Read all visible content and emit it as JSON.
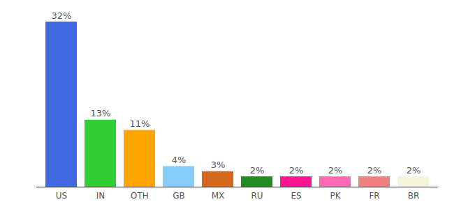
{
  "chart_data": {
    "type": "bar",
    "categories": [
      "US",
      "IN",
      "OTH",
      "GB",
      "MX",
      "RU",
      "ES",
      "PK",
      "FR",
      "BR"
    ],
    "values": [
      32,
      13,
      11,
      4,
      3,
      2,
      2,
      2,
      2,
      2
    ],
    "value_labels": [
      "32%",
      "13%",
      "11%",
      "4%",
      "3%",
      "2%",
      "2%",
      "2%",
      "2%",
      "2%"
    ],
    "colors": [
      "#4169e1",
      "#32cd32",
      "#ffa500",
      "#87cefa",
      "#d2691e",
      "#228b22",
      "#ff1493",
      "#ff69b4",
      "#f08080",
      "#f5f5dc"
    ],
    "ylim": [
      0,
      32
    ],
    "data_labels": true,
    "tick_labels": "x",
    "grid": false
  }
}
